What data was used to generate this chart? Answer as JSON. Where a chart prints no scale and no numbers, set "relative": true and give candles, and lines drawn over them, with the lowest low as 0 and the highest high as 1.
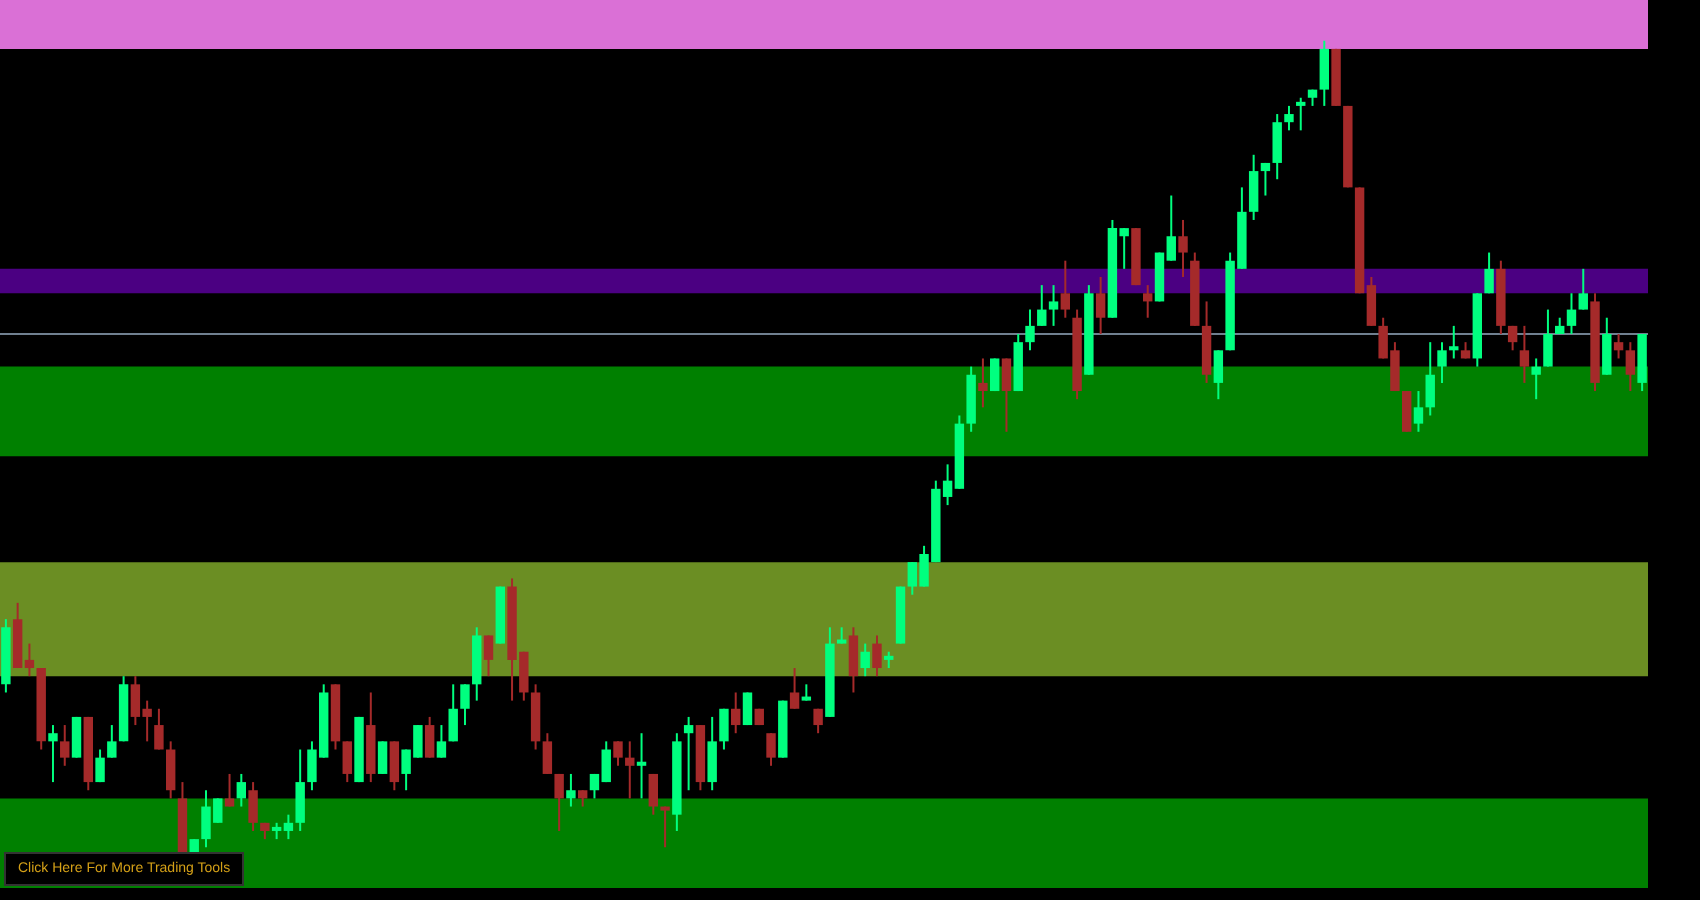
{
  "chart_data": {
    "type": "candlestick",
    "relative": true,
    "categories": [
      null,
      null,
      null,
      null,
      null,
      null,
      null,
      null,
      null,
      null,
      null,
      null,
      null,
      null,
      null,
      null,
      null,
      null,
      null,
      null,
      null,
      null,
      null,
      null,
      null,
      null,
      null,
      null,
      null,
      null,
      null,
      null,
      null,
      null,
      null,
      null,
      null,
      null,
      null,
      null,
      null,
      null,
      null,
      null,
      null,
      null,
      null,
      null,
      null,
      null,
      null,
      null,
      null,
      null,
      null,
      null,
      null,
      null,
      null,
      null,
      null,
      null,
      null,
      null,
      null,
      null,
      null,
      null,
      null,
      null,
      null,
      null,
      null,
      null,
      null,
      null,
      null,
      null,
      null,
      null,
      null,
      null,
      null,
      null,
      null,
      null,
      null,
      null,
      null,
      null,
      null,
      null,
      null,
      null,
      null,
      null,
      null,
      null,
      null,
      null,
      null,
      null,
      null,
      null,
      null,
      null,
      null,
      null,
      null,
      null,
      null,
      null,
      null,
      null,
      null,
      null,
      null,
      null,
      null,
      null,
      null,
      null,
      null,
      null,
      null,
      null,
      null,
      null,
      null,
      null,
      null,
      null,
      null,
      null,
      null,
      null,
      null,
      null,
      null,
      null
    ],
    "ohlc": [
      [
        0.21,
        0.29,
        0.2,
        0.28
      ],
      [
        0.29,
        0.31,
        0.23,
        0.23
      ],
      [
        0.24,
        0.26,
        0.22,
        0.23
      ],
      [
        0.23,
        0.23,
        0.13,
        0.14
      ],
      [
        0.14,
        0.16,
        0.09,
        0.15
      ],
      [
        0.14,
        0.16,
        0.11,
        0.12
      ],
      [
        0.12,
        0.17,
        0.12,
        0.17
      ],
      [
        0.17,
        0.17,
        0.08,
        0.09
      ],
      [
        0.09,
        0.13,
        0.09,
        0.12
      ],
      [
        0.12,
        0.16,
        0.12,
        0.14
      ],
      [
        0.14,
        0.22,
        0.14,
        0.21
      ],
      [
        0.21,
        0.22,
        0.16,
        0.17
      ],
      [
        0.18,
        0.19,
        0.14,
        0.17
      ],
      [
        0.16,
        0.18,
        0.13,
        0.13
      ],
      [
        0.13,
        0.14,
        0.07,
        0.08
      ],
      [
        0.07,
        0.09,
        0,
        0
      ],
      [
        0,
        0.02,
        0,
        0.02
      ],
      [
        0.02,
        0.08,
        0.01,
        0.06
      ],
      [
        0.04,
        0.07,
        0.04,
        0.07
      ],
      [
        0.07,
        0.1,
        0.06,
        0.06
      ],
      [
        0.07,
        0.1,
        0.06,
        0.09
      ],
      [
        0.08,
        0.09,
        0.03,
        0.04
      ],
      [
        0.04,
        0.04,
        0.02,
        0.03
      ],
      [
        0.03,
        0.04,
        0.02,
        0.035
      ],
      [
        0.03,
        0.05,
        0.02,
        0.04
      ],
      [
        0.04,
        0.13,
        0.03,
        0.09
      ],
      [
        0.09,
        0.14,
        0.08,
        0.13
      ],
      [
        0.12,
        0.21,
        0.12,
        0.2
      ],
      [
        0.21,
        0.21,
        0.13,
        0.14
      ],
      [
        0.14,
        0.14,
        0.09,
        0.1
      ],
      [
        0.09,
        0.17,
        0.09,
        0.17
      ],
      [
        0.16,
        0.2,
        0.09,
        0.1
      ],
      [
        0.1,
        0.14,
        0.1,
        0.14
      ],
      [
        0.14,
        0.14,
        0.08,
        0.09
      ],
      [
        0.1,
        0.13,
        0.08,
        0.13
      ],
      [
        0.12,
        0.16,
        0.12,
        0.16
      ],
      [
        0.16,
        0.17,
        0.12,
        0.12
      ],
      [
        0.12,
        0.16,
        0.12,
        0.14
      ],
      [
        0.14,
        0.21,
        0.14,
        0.18
      ],
      [
        0.18,
        0.21,
        0.16,
        0.21
      ],
      [
        0.21,
        0.28,
        0.19,
        0.27
      ],
      [
        0.27,
        0.27,
        0.22,
        0.24
      ],
      [
        0.26,
        0.33,
        0.26,
        0.33
      ],
      [
        0.33,
        0.34,
        0.19,
        0.24
      ],
      [
        0.25,
        0.25,
        0.19,
        0.2
      ],
      [
        0.2,
        0.21,
        0.13,
        0.14
      ],
      [
        0.14,
        0.15,
        0.1,
        0.1
      ],
      [
        0.1,
        0.1,
        0.03,
        0.07
      ],
      [
        0.07,
        0.1,
        0.06,
        0.08
      ],
      [
        0.08,
        0.08,
        0.06,
        0.07
      ],
      [
        0.08,
        0.1,
        0.07,
        0.1
      ],
      [
        0.09,
        0.14,
        0.09,
        0.13
      ],
      [
        0.14,
        0.14,
        0.11,
        0.12
      ],
      [
        0.12,
        0.14,
        0.07,
        0.11
      ],
      [
        0.11,
        0.15,
        0.07,
        0.115
      ],
      [
        0.1,
        0.1,
        0.05,
        0.06
      ],
      [
        0.06,
        0.06,
        0.01,
        0.055
      ],
      [
        0.05,
        0.15,
        0.03,
        0.14
      ],
      [
        0.15,
        0.17,
        0.08,
        0.16
      ],
      [
        0.16,
        0.16,
        0.08,
        0.09
      ],
      [
        0.09,
        0.17,
        0.08,
        0.14
      ],
      [
        0.14,
        0.18,
        0.13,
        0.18
      ],
      [
        0.18,
        0.2,
        0.15,
        0.16
      ],
      [
        0.16,
        0.2,
        0.16,
        0.2
      ],
      [
        0.18,
        0.18,
        0.16,
        0.16
      ],
      [
        0.15,
        0.15,
        0.11,
        0.12
      ],
      [
        0.12,
        0.19,
        0.12,
        0.19
      ],
      [
        0.2,
        0.23,
        0.18,
        0.18
      ],
      [
        0.19,
        0.21,
        0.19,
        0.195
      ],
      [
        0.18,
        0.18,
        0.15,
        0.16
      ],
      [
        0.17,
        0.28,
        0.17,
        0.26
      ],
      [
        0.26,
        0.28,
        0.26,
        0.265
      ],
      [
        0.27,
        0.28,
        0.2,
        0.22
      ],
      [
        0.23,
        0.26,
        0.22,
        0.25
      ],
      [
        0.26,
        0.27,
        0.22,
        0.23
      ],
      [
        0.24,
        0.25,
        0.23,
        0.245
      ],
      [
        0.26,
        0.33,
        0.26,
        0.33
      ],
      [
        0.33,
        0.36,
        0.32,
        0.36
      ],
      [
        0.33,
        0.38,
        0.33,
        0.37
      ],
      [
        0.36,
        0.46,
        0.36,
        0.45
      ],
      [
        0.44,
        0.48,
        0.43,
        0.46
      ],
      [
        0.45,
        0.54,
        0.45,
        0.53
      ],
      [
        0.53,
        0.6,
        0.52,
        0.59
      ],
      [
        0.58,
        0.61,
        0.55,
        0.57
      ],
      [
        0.57,
        0.61,
        0.57,
        0.61
      ],
      [
        0.61,
        0.61,
        0.52,
        0.57
      ],
      [
        0.57,
        0.64,
        0.57,
        0.63
      ],
      [
        0.63,
        0.67,
        0.62,
        0.65
      ],
      [
        0.65,
        0.7,
        0.65,
        0.67
      ],
      [
        0.67,
        0.7,
        0.65,
        0.68
      ],
      [
        0.69,
        0.73,
        0.66,
        0.67
      ],
      [
        0.66,
        0.67,
        0.56,
        0.57
      ],
      [
        0.59,
        0.7,
        0.59,
        0.69
      ],
      [
        0.69,
        0.71,
        0.64,
        0.66
      ],
      [
        0.66,
        0.78,
        0.66,
        0.77
      ],
      [
        0.76,
        0.77,
        0.72,
        0.77
      ],
      [
        0.77,
        0.77,
        0.7,
        0.7
      ],
      [
        0.69,
        0.7,
        0.66,
        0.68
      ],
      [
        0.68,
        0.74,
        0.68,
        0.74
      ],
      [
        0.73,
        0.81,
        0.73,
        0.76
      ],
      [
        0.76,
        0.78,
        0.71,
        0.74
      ],
      [
        0.73,
        0.74,
        0.65,
        0.65
      ],
      [
        0.65,
        0.68,
        0.58,
        0.59
      ],
      [
        0.58,
        0.62,
        0.56,
        0.62
      ],
      [
        0.62,
        0.74,
        0.62,
        0.73
      ],
      [
        0.72,
        0.82,
        0.72,
        0.79
      ],
      [
        0.79,
        0.86,
        0.78,
        0.84
      ],
      [
        0.84,
        0.85,
        0.81,
        0.85
      ],
      [
        0.85,
        0.91,
        0.83,
        0.9
      ],
      [
        0.9,
        0.92,
        0.89,
        0.91
      ],
      [
        0.92,
        0.93,
        0.89,
        0.925
      ],
      [
        0.93,
        0.94,
        0.92,
        0.94
      ],
      [
        0.94,
        1,
        0.92,
        0.99
      ],
      [
        0.99,
        0.99,
        0.92,
        0.92
      ],
      [
        0.92,
        0.92,
        0.82,
        0.82
      ],
      [
        0.82,
        0.82,
        0.69,
        0.69
      ],
      [
        0.7,
        0.71,
        0.65,
        0.65
      ],
      [
        0.65,
        0.66,
        0.61,
        0.61
      ],
      [
        0.62,
        0.63,
        0.57,
        0.57
      ],
      [
        0.57,
        0.57,
        0.52,
        0.52
      ],
      [
        0.53,
        0.57,
        0.52,
        0.55
      ],
      [
        0.55,
        0.63,
        0.54,
        0.59
      ],
      [
        0.6,
        0.63,
        0.58,
        0.62
      ],
      [
        0.62,
        0.65,
        0.61,
        0.625
      ],
      [
        0.62,
        0.63,
        0.61,
        0.61
      ],
      [
        0.61,
        0.69,
        0.6,
        0.69
      ],
      [
        0.69,
        0.74,
        0.69,
        0.72
      ],
      [
        0.72,
        0.73,
        0.64,
        0.65
      ],
      [
        0.65,
        0.65,
        0.62,
        0.63
      ],
      [
        0.62,
        0.65,
        0.58,
        0.6
      ],
      [
        0.59,
        0.61,
        0.56,
        0.6
      ],
      [
        0.6,
        0.67,
        0.6,
        0.64
      ],
      [
        0.64,
        0.66,
        0.64,
        0.65
      ],
      [
        0.65,
        0.69,
        0.64,
        0.67
      ],
      [
        0.67,
        0.72,
        0.67,
        0.69
      ],
      [
        0.68,
        0.69,
        0.57,
        0.58
      ],
      [
        0.59,
        0.66,
        0.59,
        0.64
      ],
      [
        0.63,
        0.64,
        0.61,
        0.62
      ],
      [
        0.62,
        0.63,
        0.57,
        0.59
      ],
      [
        0.58,
        0.64,
        0.57,
        0.64
      ]
    ],
    "colors": [
      "#00ff7f",
      "#a52a2a",
      "#a52a2a",
      "#a52a2a",
      "#00ff7f",
      "#a52a2a",
      "#00ff7f",
      "#a52a2a",
      "#00ff7f",
      "#00ff7f",
      "#00ff7f",
      "#a52a2a",
      "#a52a2a",
      "#a52a2a",
      "#a52a2a",
      "#a52a2a",
      "#00ff7f",
      "#00ff7f",
      "#00ff7f",
      "#a52a2a",
      "#00ff7f",
      "#a52a2a",
      "#a52a2a",
      "#00ff7f",
      "#00ff7f",
      "#00ff7f",
      "#00ff7f",
      "#00ff7f",
      "#a52a2a",
      "#a52a2a",
      "#00ff7f",
      "#a52a2a",
      "#00ff7f",
      "#a52a2a",
      "#00ff7f",
      "#00ff7f",
      "#a52a2a",
      "#00ff7f",
      "#00ff7f",
      "#00ff7f",
      "#00ff7f",
      "#a52a2a",
      "#00ff7f",
      "#a52a2a",
      "#a52a2a",
      "#a52a2a",
      "#a52a2a",
      "#a52a2a",
      "#00ff7f",
      "#a52a2a",
      "#00ff7f",
      "#00ff7f",
      "#a52a2a",
      "#a52a2a",
      "#00ff7f",
      "#a52a2a",
      "#a52a2a",
      "#00ff7f",
      "#00ff7f",
      "#a52a2a",
      "#00ff7f",
      "#00ff7f",
      "#a52a2a",
      "#00ff7f",
      "#a52a2a",
      "#a52a2a",
      "#00ff7f",
      "#a52a2a",
      "#00ff7f",
      "#a52a2a",
      "#00ff7f",
      "#00ff7f",
      "#a52a2a",
      "#00ff7f",
      "#a52a2a",
      "#00ff7f",
      "#00ff7f",
      "#00ff7f",
      "#00ff7f",
      "#00ff7f",
      "#00ff7f",
      "#00ff7f",
      "#00ff7f",
      "#a52a2a",
      "#00ff7f",
      "#a52a2a",
      "#00ff7f",
      "#00ff7f",
      "#00ff7f",
      "#00ff7f",
      "#a52a2a",
      "#a52a2a",
      "#00ff7f",
      "#a52a2a",
      "#00ff7f",
      "#00ff7f",
      "#a52a2a",
      "#a52a2a",
      "#00ff7f",
      "#00ff7f",
      "#a52a2a",
      "#a52a2a",
      "#a52a2a",
      "#00ff7f",
      "#00ff7f",
      "#00ff7f",
      "#00ff7f",
      "#00ff7f",
      "#00ff7f",
      "#00ff7f",
      "#00ff7f",
      "#00ff7f",
      "#00ff7f",
      "#a52a2a",
      "#a52a2a",
      "#a52a2a",
      "#a52a2a",
      "#a52a2a",
      "#a52a2a",
      "#a52a2a",
      "#00ff7f",
      "#00ff7f",
      "#00ff7f",
      "#00ff7f",
      "#a52a2a",
      "#00ff7f",
      "#00ff7f",
      "#a52a2a",
      "#a52a2a",
      "#a52a2a",
      "#00ff7f",
      "#00ff7f",
      "#00ff7f",
      "#00ff7f",
      "#00ff7f",
      "#a52a2a",
      "#00ff7f",
      "#a52a2a",
      "#a52a2a",
      "#00ff7f"
    ],
    "bands": [
      {
        "axis": "y",
        "from": -0.04,
        "to": 0.07,
        "color": "#008000"
      },
      {
        "axis": "y",
        "from": 0.22,
        "to": 0.36,
        "color": "#6b8e23"
      },
      {
        "axis": "y",
        "from": 0.49,
        "to": 0.6,
        "color": "#008000"
      },
      {
        "axis": "y",
        "from": 0.69,
        "to": 0.72,
        "color": "#4b0082"
      },
      {
        "axis": "y",
        "from": 0.99,
        "to": 1.05,
        "color": "#da70d6"
      }
    ],
    "ref_lines": [
      {
        "axis": "y",
        "value": 0.64,
        "color": "#708090"
      }
    ],
    "annotations": [
      "Click Here For More Trading Tools"
    ]
  }
}
